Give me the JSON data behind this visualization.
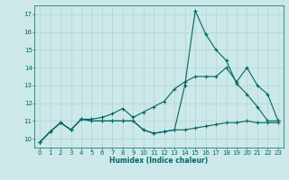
{
  "xlabel": "Humidex (Indice chaleur)",
  "bg_color": "#cce8e8",
  "grid_color": "#b0d4d4",
  "line_color": "#006666",
  "xlim": [
    -0.5,
    23.5
  ],
  "ylim": [
    9.5,
    17.5
  ],
  "xticks": [
    0,
    1,
    2,
    3,
    4,
    5,
    6,
    7,
    8,
    9,
    10,
    11,
    12,
    13,
    14,
    15,
    16,
    17,
    18,
    19,
    20,
    21,
    22,
    23
  ],
  "yticks": [
    10,
    11,
    12,
    13,
    14,
    15,
    16,
    17
  ],
  "series": [
    {
      "x": [
        0,
        1,
        2,
        3,
        4,
        5,
        6,
        7,
        8,
        9,
        10,
        11,
        12,
        13,
        14,
        15,
        16,
        17,
        18,
        19,
        20,
        21,
        22,
        23
      ],
      "y": [
        9.8,
        10.4,
        10.9,
        10.5,
        11.1,
        11.0,
        11.0,
        11.0,
        11.0,
        11.0,
        10.5,
        10.3,
        10.4,
        10.5,
        13.0,
        17.2,
        15.9,
        15.0,
        14.4,
        13.1,
        12.5,
        11.8,
        11.0,
        11.0
      ]
    },
    {
      "x": [
        0,
        1,
        2,
        3,
        4,
        5,
        6,
        7,
        8,
        9,
        10,
        11,
        12,
        13,
        14,
        15,
        16,
        17,
        18,
        19,
        20,
        21,
        22,
        23
      ],
      "y": [
        9.8,
        10.4,
        10.9,
        10.5,
        11.1,
        11.1,
        11.2,
        11.4,
        11.7,
        11.2,
        11.5,
        11.8,
        12.1,
        12.8,
        13.2,
        13.5,
        13.5,
        13.5,
        14.0,
        13.2,
        14.0,
        13.0,
        12.5,
        11.0
      ]
    },
    {
      "x": [
        0,
        1,
        2,
        3,
        4,
        5,
        6,
        7,
        8,
        9,
        10,
        11,
        12,
        13,
        14,
        15,
        16,
        17,
        18,
        19,
        20,
        21,
        22,
        23
      ],
      "y": [
        9.8,
        10.4,
        10.9,
        10.5,
        11.1,
        11.0,
        11.0,
        11.0,
        11.0,
        11.0,
        10.5,
        10.3,
        10.4,
        10.5,
        10.5,
        10.6,
        10.7,
        10.8,
        10.9,
        10.9,
        11.0,
        10.9,
        10.9,
        10.9
      ]
    }
  ]
}
